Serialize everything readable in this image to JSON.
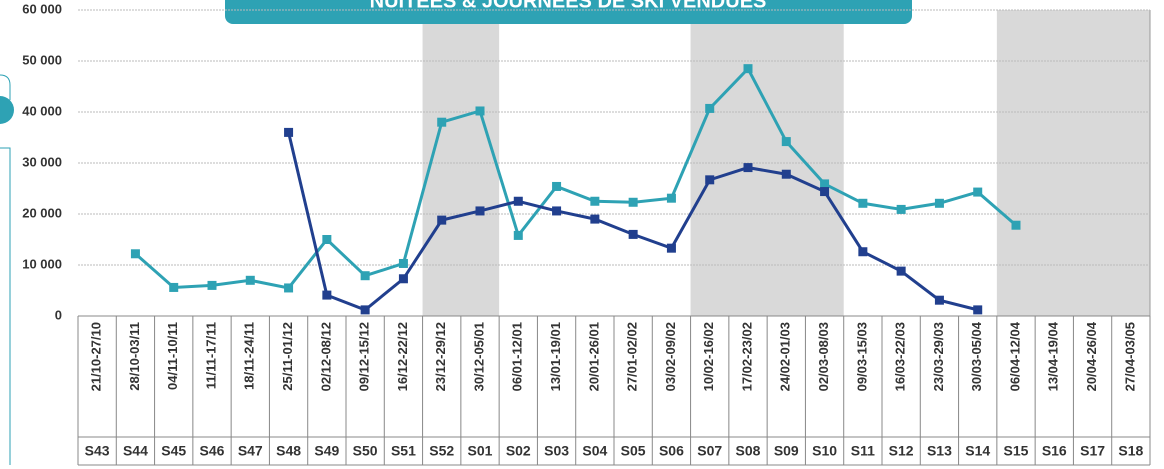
{
  "chart_data": {
    "type": "line",
    "title": "NUITEES & JOURNEES DE SKI VENDUES",
    "categories": [
      "21/10-27/10",
      "28/10-03/11",
      "04/11-10/11",
      "11/11-17/11",
      "18/11-24/11",
      "25/11-01/12",
      "02/12-08/12",
      "09/12-15/12",
      "16/12-22/12",
      "23/12-29/12",
      "30/12-05/01",
      "06/01-12/01",
      "13/01-19/01",
      "20/01-26/01",
      "27/01-02/02",
      "03/02-09/02",
      "10/02-16/02",
      "17/02-23/02",
      "24/02-01/03",
      "02/03-08/03",
      "09/03-15/03",
      "16/03-22/03",
      "23/03-29/03",
      "30/03-05/04",
      "06/04-12/04",
      "13/04-19/04",
      "20/04-26/04",
      "27/04-03/05"
    ],
    "weeks": [
      "S43",
      "S44",
      "S45",
      "S46",
      "S47",
      "S48",
      "S49",
      "S50",
      "S51",
      "S52",
      "S01",
      "S02",
      "S03",
      "S04",
      "S05",
      "S06",
      "S07",
      "S08",
      "S09",
      "S10",
      "S11",
      "S12",
      "S13",
      "S14",
      "S15",
      "S16",
      "S17",
      "S18"
    ],
    "series": [
      {
        "color": "#2ea2b4",
        "values": [
          null,
          12200,
          5600,
          6000,
          7000,
          5500,
          15000,
          7900,
          10300,
          38000,
          40200,
          15800,
          25400,
          22500,
          22300,
          23100,
          40700,
          48500,
          34200,
          25900,
          22100,
          20900,
          22100,
          24300,
          17800,
          null,
          null,
          null
        ]
      },
      {
        "color": "#213f8e",
        "values": [
          null,
          null,
          null,
          null,
          null,
          36000,
          4100,
          1200,
          7300,
          18800,
          20600,
          22500,
          20600,
          19000,
          16000,
          13300,
          26700,
          29100,
          27800,
          24400,
          12600,
          8800,
          3100,
          1200,
          null,
          null,
          null,
          null
        ]
      }
    ],
    "ylim": [
      0,
      60000
    ],
    "yticks": [
      0,
      {
        "value": 10000,
        "label": "10 000"
      },
      {
        "value": 20000,
        "label": "20 000"
      },
      {
        "value": 30000,
        "label": "30 000"
      },
      {
        "value": 40000,
        "label": "40 000"
      },
      {
        "value": 50000,
        "label": "50 000"
      },
      {
        "value": 60000,
        "label": "60 000"
      }
    ],
    "grid": true
  }
}
